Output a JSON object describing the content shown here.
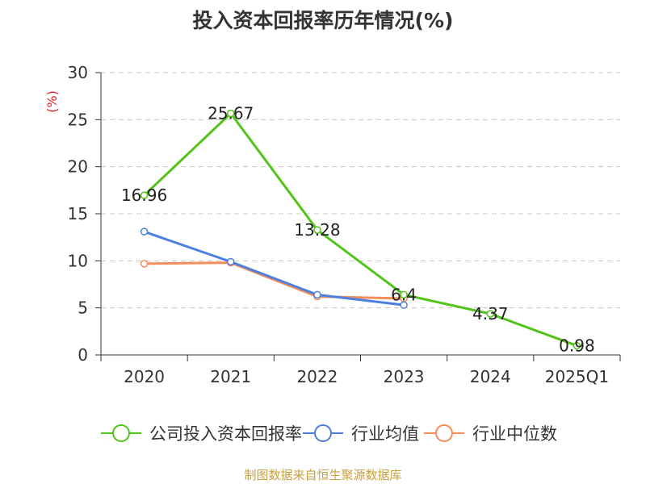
{
  "chart_data": {
    "type": "line",
    "title": "投入资本回报率历年情况(%)",
    "ylabel": "(%)",
    "xlabel": "",
    "categories": [
      "2020",
      "2021",
      "2022",
      "2023",
      "2024",
      "2025Q1"
    ],
    "ylim": [
      0,
      30
    ],
    "yticks": [
      0,
      5,
      10,
      15,
      20,
      25,
      30
    ],
    "grid": true,
    "legend_position": "bottom",
    "series": [
      {
        "name": "公司投入资本回报率",
        "color": "#52c41a",
        "values": [
          16.96,
          25.67,
          13.28,
          6.4,
          4.37,
          0.98
        ],
        "labels": [
          "16.96",
          "25.67",
          "13.28",
          "6.4",
          "4.37",
          "0.98"
        ]
      },
      {
        "name": "行业均值",
        "color": "#4e7fdf",
        "values": [
          13.1,
          9.9,
          6.4,
          5.3,
          null,
          null
        ]
      },
      {
        "name": "行业中位数",
        "color": "#f58d5a",
        "values": [
          9.7,
          9.8,
          6.2,
          6.0,
          null,
          null
        ]
      }
    ],
    "source": "制图数据来自恒生聚源数据库"
  }
}
